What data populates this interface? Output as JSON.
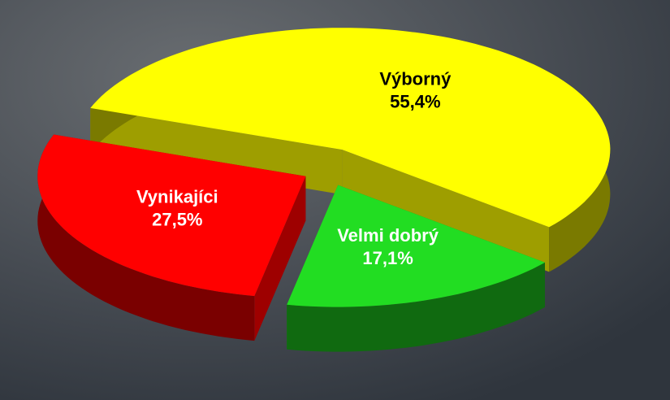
{
  "chart_data": {
    "type": "pie",
    "categories": [
      "Výborný",
      "Velmi dobrý",
      "Vynikajíci"
    ],
    "values": [
      55.4,
      17.1,
      27.5
    ],
    "value_labels": [
      "55,4%",
      "17,1%",
      "27,5%"
    ],
    "colors": [
      "#ffff00",
      "#22dd22",
      "#ff0000"
    ]
  }
}
